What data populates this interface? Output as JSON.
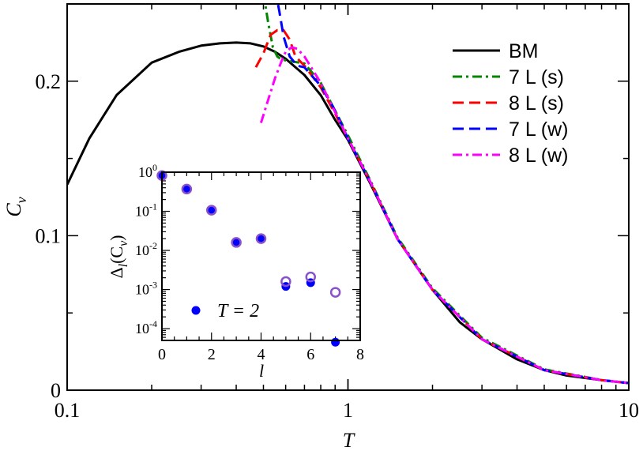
{
  "chart_data": [
    {
      "type": "line",
      "xlabel": "T",
      "ylabel": "C",
      "ylabel_sub": "v",
      "xscale": "log",
      "xlim": [
        0.1,
        10
      ],
      "ylim": [
        0,
        0.25
      ],
      "x_ticks": [
        0.1,
        1,
        10
      ],
      "x_tick_labels": [
        "0.1",
        "1",
        "10"
      ],
      "y_ticks": [
        0,
        0.1,
        0.2
      ],
      "y_tick_labels": [
        "0",
        "0.1",
        "0.2"
      ],
      "grid": false,
      "legend_position": "top-right",
      "series": [
        {
          "name": "BM",
          "color": "#000000",
          "dash": "solid",
          "x": [
            0.1,
            0.12,
            0.15,
            0.2,
            0.25,
            0.3,
            0.35,
            0.4,
            0.45,
            0.5,
            0.55,
            0.6,
            0.7,
            0.8,
            0.9,
            1.0,
            1.2,
            1.5,
            2.0,
            2.5,
            3.0,
            4.0,
            5.0,
            6.0,
            8.0,
            10.0
          ],
          "y": [
            0.133,
            0.163,
            0.191,
            0.212,
            0.219,
            0.223,
            0.2245,
            0.225,
            0.2245,
            0.2225,
            0.219,
            0.2145,
            0.204,
            0.191,
            0.175,
            0.162,
            0.134,
            0.098,
            0.065,
            0.044,
            0.033,
            0.02,
            0.013,
            0.0095,
            0.0065,
            0.0046
          ]
        },
        {
          "name": "7 L (s)",
          "color": "#008800",
          "dash": "dashdot",
          "x": [
            0.5,
            0.52,
            0.54,
            0.56,
            0.58,
            0.62,
            0.7,
            0.8,
            0.9,
            1.0,
            1.2,
            1.5,
            2.0,
            3.0,
            5.0,
            8.0,
            10.0
          ],
          "y": [
            0.257,
            0.238,
            0.222,
            0.216,
            0.214,
            0.213,
            0.2115,
            0.199,
            0.181,
            0.165,
            0.136,
            0.099,
            0.066,
            0.034,
            0.0135,
            0.0066,
            0.0047
          ]
        },
        {
          "name": "8 L (s)",
          "color": "#ff0000",
          "dash": "dashed",
          "x": [
            0.47,
            0.5,
            0.53,
            0.56,
            0.59,
            0.62,
            0.65,
            0.7,
            0.8,
            0.9,
            1.0,
            1.2,
            1.5,
            2.0,
            3.0,
            5.0,
            8.0,
            10.0
          ],
          "y": [
            0.209,
            0.218,
            0.23,
            0.233,
            0.233,
            0.227,
            0.216,
            0.21,
            0.196,
            0.179,
            0.163,
            0.135,
            0.098,
            0.065,
            0.033,
            0.013,
            0.0065,
            0.0046
          ]
        },
        {
          "name": "7 L (w)",
          "color": "#0000ff",
          "dash": "dashed",
          "x": [
            0.55,
            0.57,
            0.59,
            0.62,
            0.66,
            0.7,
            0.8,
            0.9,
            1.0,
            1.2,
            1.5,
            2.0,
            3.0,
            5.0,
            8.0,
            10.0
          ],
          "y": [
            0.26,
            0.245,
            0.229,
            0.216,
            0.21,
            0.209,
            0.197,
            0.181,
            0.163,
            0.135,
            0.098,
            0.065,
            0.033,
            0.013,
            0.0065,
            0.0046
          ]
        },
        {
          "name": "8 L (w)",
          "color": "#ff00ff",
          "dash": "dashdot",
          "x": [
            0.49,
            0.52,
            0.55,
            0.58,
            0.6,
            0.63,
            0.66,
            0.7,
            0.8,
            0.9,
            1.0,
            1.2,
            1.5,
            2.0,
            3.0,
            5.0,
            8.0,
            10.0
          ],
          "y": [
            0.173,
            0.188,
            0.202,
            0.213,
            0.219,
            0.222,
            0.221,
            0.216,
            0.199,
            0.18,
            0.163,
            0.135,
            0.098,
            0.065,
            0.033,
            0.013,
            0.0065,
            0.0046
          ]
        }
      ]
    },
    {
      "type": "scatter",
      "xlabel": "l",
      "ylabel": "Δ",
      "ylabel_sub": "l",
      "ylabel_tail": "(C",
      "ylabel_tail_sub": "v",
      "ylabel_close": ")",
      "yscale": "log",
      "xlim": [
        0,
        8
      ],
      "ylim": [
        5e-05,
        1
      ],
      "x_ticks": [
        0,
        2,
        4,
        6,
        8
      ],
      "x_tick_labels": [
        "0",
        "2",
        "4",
        "6",
        "8"
      ],
      "y_ticks": [
        1,
        0.1,
        0.01,
        0.001,
        0.0001
      ],
      "y_tick_mantissa": "10",
      "y_tick_exponents": [
        "0",
        "-1",
        "-2",
        "-3",
        "-4"
      ],
      "annotation": "T = 2",
      "grid": false,
      "series": [
        {
          "name": "filled",
          "color": "#0000ff",
          "marker": "filled-circle",
          "x": [
            0,
            1,
            2,
            3,
            4,
            5,
            6,
            7
          ],
          "y": [
            0.82,
            0.37,
            0.107,
            0.016,
            0.02,
            0.0012,
            0.0015,
            4.5e-05
          ]
        },
        {
          "name": "open",
          "color": "#8a52c8",
          "marker": "open-circle",
          "x": [
            0,
            1,
            2,
            3,
            4,
            5,
            6,
            7
          ],
          "y": [
            0.82,
            0.37,
            0.107,
            0.016,
            0.02,
            0.0016,
            0.0021,
            0.00085
          ]
        }
      ]
    }
  ]
}
